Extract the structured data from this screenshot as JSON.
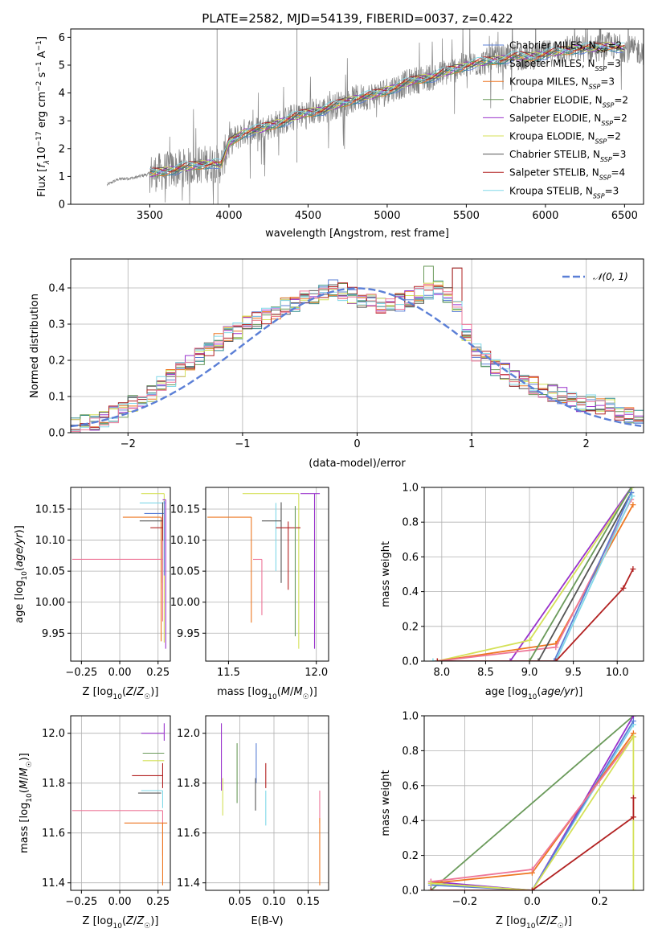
{
  "title": "PLATE=2582, MJD=54139, FIBERID=0037, z=0.422",
  "colors": {
    "chabrier_miles": "#5b7fd6",
    "salpeter_miles": "#2e8b8b",
    "kroupa_miles": "#ee7722",
    "chabrier_elodie": "#6a9a5a",
    "salpeter_elodie": "#9932cc",
    "kroupa_elodie": "#d4e157",
    "chabrier_stelib": "#555555",
    "salpeter_stelib": "#b22222",
    "kroupa_stelib": "#80d8e8",
    "pink": "#ee7799",
    "data": "#808080",
    "normal": "#5b7fd6"
  },
  "chart_data": [
    {
      "id": "spectrum",
      "type": "line",
      "xlabel": "wavelength [Angstrom, rest frame]",
      "ylabel": "Flux [f_λ 10^-17 erg cm^-2 s^-1 A^-1]",
      "xlim": [
        3000,
        6620
      ],
      "ylim": [
        0,
        6.3
      ],
      "xticks": [
        "3500",
        "4000",
        "4500",
        "5000",
        "5500",
        "6000",
        "6500"
      ],
      "yticks": [
        "0",
        "1",
        "2",
        "3",
        "4",
        "5",
        "6"
      ],
      "grid": false,
      "legend_position": "upper right",
      "legend": [
        {
          "name": "Chabrier MILES, N_SSP=2",
          "color_key": "chabrier_miles"
        },
        {
          "name": "Salpeter MILES, N_SSP=3",
          "color_key": "salpeter_miles"
        },
        {
          "name": "Kroupa MILES, N_SSP=3",
          "color_key": "kroupa_miles"
        },
        {
          "name": "Chabrier ELODIE, N_SSP=2",
          "color_key": "chabrier_elodie"
        },
        {
          "name": "Salpeter ELODIE, N_SSP=2",
          "color_key": "salpeter_elodie"
        },
        {
          "name": "Kroupa ELODIE, N_SSP=2",
          "color_key": "kroupa_elodie"
        },
        {
          "name": "Chabrier STELIB, N_SSP=3",
          "color_key": "chabrier_stelib"
        },
        {
          "name": "Salpeter STELIB, N_SSP=4",
          "color_key": "salpeter_stelib"
        },
        {
          "name": "Kroupa STELIB, N_SSP=3",
          "color_key": "kroupa_stelib"
        }
      ],
      "continuum": {
        "x": [
          3230,
          3300,
          3400,
          3500,
          3600,
          3700,
          3800,
          3900,
          3950,
          4000,
          4100,
          4200,
          4300,
          4400,
          4500,
          4600,
          4700,
          4800,
          4900,
          5000,
          5100,
          5200,
          5300,
          5400,
          5500,
          5600,
          5700,
          5800,
          5900,
          6000,
          6100,
          6200,
          6300,
          6400,
          6500,
          6600
        ],
        "y": [
          0.7,
          0.9,
          0.95,
          1.1,
          1.2,
          1.3,
          1.4,
          1.5,
          1.4,
          2.2,
          2.6,
          2.7,
          2.9,
          3.1,
          3.3,
          3.4,
          3.6,
          3.8,
          3.9,
          4.1,
          4.3,
          4.5,
          4.6,
          4.8,
          5.0,
          5.1,
          5.2,
          5.3,
          5.3,
          5.4,
          5.5,
          5.6,
          5.6,
          5.7,
          5.6,
          5.5
        ]
      }
    },
    {
      "id": "residuals",
      "type": "histogram",
      "xlabel": "(data-model)/error",
      "ylabel": "Normed distribution",
      "xlim": [
        -2.5,
        2.5
      ],
      "ylim": [
        0,
        0.48
      ],
      "xticks": [
        "−2",
        "−1",
        "0",
        "1",
        "2"
      ],
      "yticks": [
        "0.0",
        "0.1",
        "0.2",
        "0.3",
        "0.4"
      ],
      "grid": true,
      "legend": [
        {
          "name": "𝒩(0, 1)",
          "color_key": "normal"
        }
      ],
      "reference_curve": "standard normal, mean 0, sigma 1",
      "hist_base": [
        0.02,
        0.03,
        0.03,
        0.04,
        0.05,
        0.06,
        0.08,
        0.09,
        0.11,
        0.13,
        0.15,
        0.17,
        0.19,
        0.21,
        0.23,
        0.25,
        0.27,
        0.28,
        0.3,
        0.31,
        0.32,
        0.33,
        0.35,
        0.36,
        0.37,
        0.38,
        0.39,
        0.4,
        0.39,
        0.38,
        0.37,
        0.36,
        0.35,
        0.35,
        0.36,
        0.37,
        0.38,
        0.39,
        0.4,
        0.38,
        0.35,
        0.28,
        0.22,
        0.2,
        0.18,
        0.17,
        0.15,
        0.14,
        0.13,
        0.12,
        0.11,
        0.1,
        0.09,
        0.08,
        0.08,
        0.07,
        0.07,
        0.06,
        0.05,
        0.05
      ],
      "hist_bin_width": 0.0833
    },
    {
      "id": "age_vs_Z",
      "type": "errorbar",
      "xlabel": "Z [log10(Z/Z☉)]",
      "ylabel": "age [log10(age/yr)]",
      "xlim": [
        -0.32,
        0.33
      ],
      "ylim": [
        9.905,
        10.185
      ],
      "xticks": [
        "−0.25",
        "0.00",
        "0.25"
      ],
      "yticks": [
        "9.95",
        "10.00",
        "10.05",
        "10.10",
        "10.15"
      ],
      "grid": true,
      "points": [
        {
          "color_key": "kroupa_elodie",
          "x": 0.29,
          "xerr": [
            0.15,
            0.0
          ],
          "y": 10.175,
          "yerr": [
            0.24,
            0.0
          ]
        },
        {
          "color_key": "kroupa_stelib",
          "x": 0.28,
          "xerr": [
            0.15,
            0.02
          ],
          "y": 10.16,
          "yerr": [
            0.1,
            0.0
          ]
        },
        {
          "color_key": "chabrier_miles",
          "x": 0.29,
          "xerr": [
            0.13,
            0.0
          ],
          "y": 10.143,
          "yerr": [
            0.1,
            0.02
          ]
        },
        {
          "color_key": "kroupa_miles",
          "x": 0.27,
          "xerr": [
            0.25,
            0.0
          ],
          "y": 10.137,
          "yerr": [
            0.2,
            0.0
          ]
        },
        {
          "color_key": "chabrier_stelib",
          "x": 0.28,
          "xerr": [
            0.15,
            0.0
          ],
          "y": 10.131,
          "yerr": [
            0.1,
            0.03
          ]
        },
        {
          "color_key": "salpeter_stelib",
          "x": 0.28,
          "xerr": [
            0.08,
            0.0
          ],
          "y": 10.12,
          "yerr": [
            0.1,
            0.02
          ]
        },
        {
          "color_key": "pink",
          "x": 0.28,
          "xerr": [
            0.59,
            0.0
          ],
          "y": 10.069,
          "yerr": [
            0.1,
            0.03
          ]
        },
        {
          "color_key": "salpeter_elodie",
          "x": 0.3,
          "xerr": [
            0.02,
            0.0
          ],
          "y": 10.165,
          "yerr": [
            0.24,
            0.0
          ]
        }
      ]
    },
    {
      "id": "age_vs_mass",
      "type": "errorbar",
      "xlabel": "mass [log10(M/M☉)]",
      "ylabel": "",
      "xlim": [
        11.37,
        12.07
      ],
      "ylim": [
        9.905,
        10.185
      ],
      "xticks": [
        "11.5",
        "12.0"
      ],
      "yticks": [
        "9.95",
        "10.00",
        "10.05",
        "10.10",
        "10.15"
      ],
      "grid": true,
      "points": [
        {
          "color_key": "kroupa_elodie",
          "x": 11.9,
          "xerr": [
            0.32,
            0.0
          ],
          "y": 10.175,
          "yerr": [
            0.25,
            0.0
          ]
        },
        {
          "color_key": "salpeter_elodie",
          "x": 11.99,
          "xerr": [
            0.08,
            0.03
          ],
          "y": 10.175,
          "yerr": [
            0.25,
            0.0
          ]
        },
        {
          "color_key": "kroupa_stelib",
          "x": 11.77,
          "xerr": [
            0.0,
            0.0
          ],
          "y": 10.16,
          "yerr": [
            0.11,
            0.0
          ]
        },
        {
          "color_key": "kroupa_miles",
          "x": 11.63,
          "xerr": [
            0.25,
            0.0
          ],
          "y": 10.137,
          "yerr": [
            0.17,
            0.0
          ]
        },
        {
          "color_key": "chabrier_stelib",
          "x": 11.8,
          "xerr": [
            0.11,
            0.0
          ],
          "y": 10.131,
          "yerr": [
            0.1,
            0.03
          ]
        },
        {
          "color_key": "salpeter_stelib",
          "x": 11.84,
          "xerr": [
            0.07,
            0.07
          ],
          "y": 10.12,
          "yerr": [
            0.1,
            0.01
          ]
        },
        {
          "color_key": "chabrier_elodie",
          "x": 11.88,
          "xerr": [
            0.0,
            0.0
          ],
          "y": 10.155,
          "yerr": [
            0.21,
            0.0
          ]
        },
        {
          "color_key": "pink",
          "x": 11.69,
          "xerr": [
            0.05,
            0.0
          ],
          "y": 10.069,
          "yerr": [
            0.09,
            0.0
          ]
        }
      ]
    },
    {
      "id": "massweight_vs_age",
      "type": "line",
      "xlabel": "age [log10(age/yr)]",
      "ylabel": "mass weight",
      "xlim": [
        7.8,
        10.3
      ],
      "ylim": [
        0,
        1
      ],
      "xticks": [
        "8.0",
        "8.5",
        "9.0",
        "9.5",
        "10.0"
      ],
      "yticks": [
        "0.0",
        "0.2",
        "0.4",
        "0.6",
        "0.8",
        "1.0"
      ],
      "grid": true,
      "series": [
        {
          "color_key": "salpeter_elodie",
          "x": [
            8.78,
            10.16
          ],
          "y": [
            0.0,
            1.0
          ]
        },
        {
          "color_key": "kroupa_elodie",
          "x": [
            7.95,
            9.0,
            10.17
          ],
          "y": [
            0.0,
            0.12,
            1.0
          ]
        },
        {
          "color_key": "kroupa_miles",
          "x": [
            7.95,
            9.3,
            10.18
          ],
          "y": [
            0.0,
            0.1,
            0.9
          ]
        },
        {
          "color_key": "pink",
          "x": [
            7.95,
            9.3,
            10.16
          ],
          "y": [
            0.0,
            0.08,
            0.93
          ]
        },
        {
          "color_key": "chabrier_elodie",
          "x": [
            9.0,
            10.16
          ],
          "y": [
            0.0,
            1.0
          ]
        },
        {
          "color_key": "chabrier_stelib",
          "x": [
            9.1,
            10.16
          ],
          "y": [
            0.0,
            0.97
          ]
        },
        {
          "color_key": "chabrier_miles",
          "x": [
            9.28,
            10.16
          ],
          "y": [
            0.0,
            0.97
          ]
        },
        {
          "color_key": "kroupa_stelib",
          "x": [
            7.9,
            9.3,
            10.17
          ],
          "y": [
            0.0,
            0.0,
            0.95
          ]
        },
        {
          "color_key": "salpeter_stelib",
          "x": [
            7.95,
            9.3,
            10.07,
            10.18
          ],
          "y": [
            0.0,
            0.0,
            0.42,
            0.53
          ]
        }
      ]
    },
    {
      "id": "mass_vs_Z",
      "type": "errorbar",
      "xlabel": "Z [log10(Z/Z☉)]",
      "ylabel": "mass [log10(M/M☉)]",
      "xlim": [
        -0.32,
        0.33
      ],
      "ylim": [
        11.37,
        12.07
      ],
      "xticks": [
        "−0.25",
        "0.00",
        "0.25"
      ],
      "yticks": [
        "11.4",
        "11.6",
        "11.8",
        "12.0"
      ],
      "grid": true,
      "points": [
        {
          "color_key": "salpeter_elodie",
          "x": 0.29,
          "xerr": [
            0.15,
            0.0
          ],
          "y": 12.0,
          "yerr": [
            0.03,
            0.04
          ]
        },
        {
          "color_key": "chabrier_elodie",
          "x": 0.29,
          "xerr": [
            0.14,
            0.0
          ],
          "y": 11.92,
          "yerr": [
            0.0,
            0.0
          ]
        },
        {
          "color_key": "kroupa_elodie",
          "x": 0.29,
          "xerr": [
            0.14,
            0.0
          ],
          "y": 11.89,
          "yerr": [
            0.0,
            0.0
          ]
        },
        {
          "color_key": "salpeter_stelib",
          "x": 0.28,
          "xerr": [
            0.2,
            0.0
          ],
          "y": 11.83,
          "yerr": [
            0.05,
            0.05
          ]
        },
        {
          "color_key": "kroupa_stelib",
          "x": 0.28,
          "xerr": [
            0.14,
            0.0
          ],
          "y": 11.77,
          "yerr": [
            0.07,
            0.0
          ]
        },
        {
          "color_key": "chabrier_stelib",
          "x": 0.27,
          "xerr": [
            0.15,
            0.0
          ],
          "y": 11.76,
          "yerr": [
            0.0,
            0.0
          ]
        },
        {
          "color_key": "pink",
          "x": 0.28,
          "xerr": [
            0.59,
            0.0
          ],
          "y": 11.69,
          "yerr": [
            0.18,
            0.0
          ]
        },
        {
          "color_key": "kroupa_miles",
          "x": 0.28,
          "xerr": [
            0.25,
            0.03
          ],
          "y": 11.64,
          "yerr": [
            0.25,
            0.0
          ]
        }
      ]
    },
    {
      "id": "mass_vs_ebv",
      "type": "errorbar",
      "xlabel": "E(B-V)",
      "ylabel": "",
      "xlim": [
        0.0,
        0.18
      ],
      "ylim": [
        11.37,
        12.07
      ],
      "xticks": [
        "0.05",
        "0.10",
        "0.15"
      ],
      "yticks": [
        "11.4",
        "11.6",
        "11.8",
        "12.0"
      ],
      "grid": true,
      "points": [
        {
          "color_key": "salpeter_elodie",
          "x": 0.023,
          "y": 11.9,
          "yerr": [
            0.13,
            0.14
          ]
        },
        {
          "color_key": "kroupa_elodie",
          "x": 0.025,
          "y": 11.8,
          "yerr": [
            0.13,
            0.02
          ]
        },
        {
          "color_key": "chabrier_elodie",
          "x": 0.046,
          "y": 11.85,
          "yerr": [
            0.13,
            0.11
          ]
        },
        {
          "color_key": "chabrier_miles",
          "x": 0.074,
          "y": 11.85,
          "yerr": [
            0.05,
            0.11
          ]
        },
        {
          "color_key": "chabrier_stelib",
          "x": 0.073,
          "y": 11.76,
          "yerr": [
            0.07,
            0.06
          ]
        },
        {
          "color_key": "kroupa_stelib",
          "x": 0.088,
          "y": 11.7,
          "yerr": [
            0.07,
            0.07
          ]
        },
        {
          "color_key": "salpeter_stelib",
          "x": 0.088,
          "y": 11.83,
          "yerr": [
            0.05,
            0.05
          ]
        },
        {
          "color_key": "pink",
          "x": 0.167,
          "y": 11.7,
          "yerr": [
            0.06,
            0.07
          ]
        },
        {
          "color_key": "kroupa_miles",
          "x": 0.167,
          "y": 11.53,
          "yerr": [
            0.14,
            0.13
          ]
        }
      ]
    },
    {
      "id": "massweight_vs_Z",
      "type": "line",
      "xlabel": "Z [log10(Z/Z☉)]",
      "ylabel": "mass weight",
      "xlim": [
        -0.32,
        0.33
      ],
      "ylim": [
        0,
        1
      ],
      "xticks": [
        "−0.2",
        "0.0",
        "0.2"
      ],
      "yticks": [
        "0.0",
        "0.2",
        "0.4",
        "0.6",
        "0.8",
        "1.0"
      ],
      "grid": true,
      "series": [
        {
          "color_key": "chabrier_elodie",
          "x": [
            -0.3,
            0.3
          ],
          "y": [
            0.0,
            1.0
          ]
        },
        {
          "color_key": "salpeter_elodie",
          "x": [
            -0.3,
            0.0,
            0.3
          ],
          "y": [
            0.05,
            0.0,
            1.0
          ]
        },
        {
          "color_key": "kroupa_stelib",
          "x": [
            -0.3,
            0.0,
            0.3
          ],
          "y": [
            0.04,
            0.0,
            0.95
          ]
        },
        {
          "color_key": "chabrier_miles",
          "x": [
            -0.3,
            0.0,
            0.3
          ],
          "y": [
            0.03,
            0.0,
            0.97
          ]
        },
        {
          "color_key": "kroupa_miles",
          "x": [
            -0.3,
            0.0,
            0.3
          ],
          "y": [
            0.04,
            0.1,
            0.9
          ]
        },
        {
          "color_key": "pink",
          "x": [
            -0.3,
            0.0,
            0.3
          ],
          "y": [
            0.05,
            0.12,
            0.88
          ]
        },
        {
          "color_key": "kroupa_elodie",
          "x": [
            -0.3,
            0.0,
            0.3,
            0.3
          ],
          "y": [
            0.04,
            0.0,
            0.88,
            0.0
          ]
        },
        {
          "color_key": "salpeter_stelib",
          "x": [
            -0.3,
            0.0,
            0.3,
            0.3
          ],
          "y": [
            0.0,
            0.0,
            0.42,
            0.53
          ]
        }
      ]
    }
  ]
}
